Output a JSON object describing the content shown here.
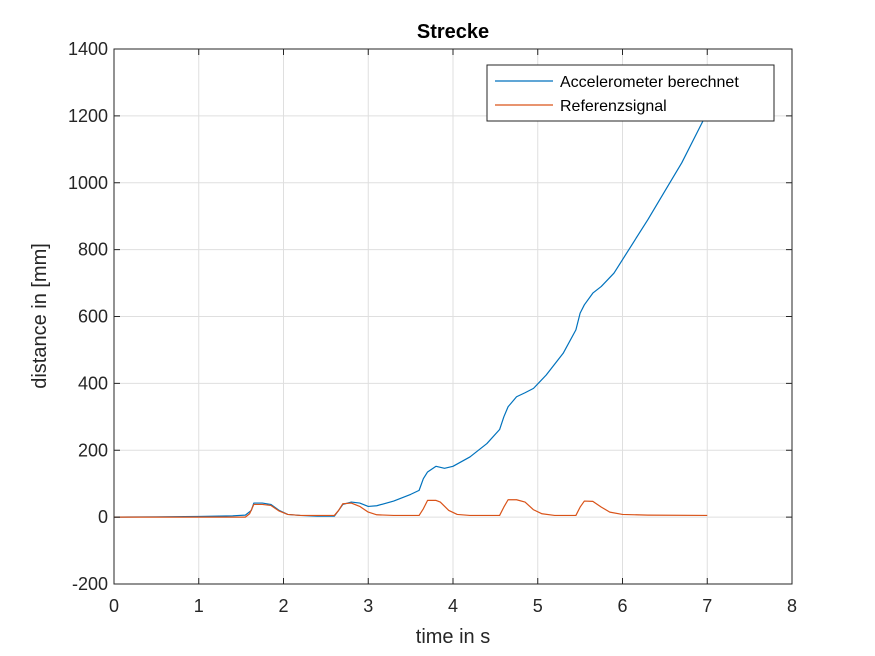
{
  "chart_data": {
    "type": "line",
    "title": "Strecke",
    "xlabel": "time in s",
    "ylabel": "distance in [mm]",
    "xlim": [
      0,
      8
    ],
    "ylim": [
      -200,
      1400
    ],
    "xticks": [
      0,
      1,
      2,
      3,
      4,
      5,
      6,
      7,
      8
    ],
    "yticks": [
      -200,
      0,
      200,
      400,
      600,
      800,
      1000,
      1200,
      1400
    ],
    "xtick_labels": [
      "0",
      "1",
      "2",
      "3",
      "4",
      "5",
      "6",
      "7",
      "8"
    ],
    "ytick_labels": [
      "-200",
      "0",
      "200",
      "400",
      "600",
      "800",
      "1000",
      "1200",
      "1400"
    ],
    "grid": true,
    "legend_position": "top-right",
    "series": [
      {
        "name": "Accelerometer berechnet",
        "color": "#0072BD",
        "points": [
          [
            0,
            0
          ],
          [
            0.5,
            1
          ],
          [
            1.0,
            2
          ],
          [
            1.4,
            4
          ],
          [
            1.55,
            6
          ],
          [
            1.62,
            20
          ],
          [
            1.65,
            42
          ],
          [
            1.75,
            42
          ],
          [
            1.85,
            38
          ],
          [
            1.95,
            20
          ],
          [
            2.05,
            8
          ],
          [
            2.2,
            5
          ],
          [
            2.4,
            3
          ],
          [
            2.6,
            3
          ],
          [
            2.65,
            20
          ],
          [
            2.7,
            38
          ],
          [
            2.8,
            45
          ],
          [
            2.9,
            42
          ],
          [
            3.0,
            32
          ],
          [
            3.1,
            34
          ],
          [
            3.3,
            48
          ],
          [
            3.5,
            68
          ],
          [
            3.6,
            80
          ],
          [
            3.65,
            115
          ],
          [
            3.7,
            135
          ],
          [
            3.8,
            152
          ],
          [
            3.9,
            146
          ],
          [
            4.0,
            152
          ],
          [
            4.2,
            180
          ],
          [
            4.4,
            220
          ],
          [
            4.55,
            262
          ],
          [
            4.6,
            300
          ],
          [
            4.65,
            330
          ],
          [
            4.75,
            360
          ],
          [
            4.85,
            372
          ],
          [
            4.95,
            385
          ],
          [
            5.1,
            425
          ],
          [
            5.3,
            490
          ],
          [
            5.45,
            560
          ],
          [
            5.5,
            610
          ],
          [
            5.55,
            635
          ],
          [
            5.65,
            670
          ],
          [
            5.75,
            690
          ],
          [
            5.9,
            730
          ],
          [
            6.1,
            810
          ],
          [
            6.3,
            890
          ],
          [
            6.5,
            975
          ],
          [
            6.7,
            1060
          ],
          [
            6.9,
            1160
          ],
          [
            7.0,
            1210
          ]
        ]
      },
      {
        "name": "Referenzsignal",
        "color": "#D95319",
        "points": [
          [
            0,
            0
          ],
          [
            1.0,
            0
          ],
          [
            1.55,
            0
          ],
          [
            1.6,
            10
          ],
          [
            1.65,
            38
          ],
          [
            1.75,
            38
          ],
          [
            1.85,
            35
          ],
          [
            1.95,
            18
          ],
          [
            2.05,
            8
          ],
          [
            2.2,
            5
          ],
          [
            2.6,
            5
          ],
          [
            2.65,
            20
          ],
          [
            2.7,
            40
          ],
          [
            2.8,
            42
          ],
          [
            2.9,
            32
          ],
          [
            3.0,
            15
          ],
          [
            3.1,
            7
          ],
          [
            3.3,
            5
          ],
          [
            3.6,
            5
          ],
          [
            3.65,
            25
          ],
          [
            3.7,
            50
          ],
          [
            3.8,
            50
          ],
          [
            3.85,
            45
          ],
          [
            3.95,
            20
          ],
          [
            4.05,
            8
          ],
          [
            4.2,
            5
          ],
          [
            4.55,
            5
          ],
          [
            4.6,
            30
          ],
          [
            4.65,
            52
          ],
          [
            4.75,
            52
          ],
          [
            4.85,
            45
          ],
          [
            4.95,
            22
          ],
          [
            5.05,
            10
          ],
          [
            5.2,
            5
          ],
          [
            5.45,
            5
          ],
          [
            5.5,
            30
          ],
          [
            5.55,
            48
          ],
          [
            5.65,
            47
          ],
          [
            5.75,
            30
          ],
          [
            5.85,
            15
          ],
          [
            6.0,
            8
          ],
          [
            6.3,
            6
          ],
          [
            7.0,
            5
          ]
        ]
      }
    ]
  }
}
